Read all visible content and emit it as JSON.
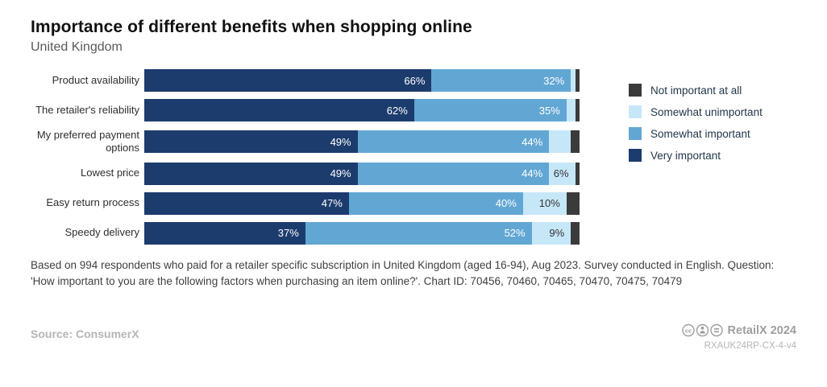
{
  "header": {
    "title": "Importance of different benefits when shopping online",
    "subtitle": "United Kingdom"
  },
  "chart_data": {
    "type": "bar",
    "stacked": true,
    "orientation": "horizontal",
    "title": "Importance of different benefits when shopping online",
    "subtitle": "United Kingdom",
    "xlim": [
      0,
      100
    ],
    "grid": false,
    "legend_position": "right",
    "categories": [
      "Product availability",
      "The retailer's reliability",
      "My preferred payment options",
      "Lowest price",
      "Easy return process",
      "Speedy delivery"
    ],
    "series": [
      {
        "key": "very-important",
        "name": "Very important",
        "color": "#1d3c6e",
        "label_color": "#ffffff",
        "values": [
          66,
          62,
          49,
          49,
          47,
          37
        ],
        "labels": [
          "66%",
          "62%",
          "49%",
          "49%",
          "47%",
          "37%"
        ]
      },
      {
        "key": "somewhat-important",
        "name": "Somewhat important",
        "color": "#62a7d4",
        "label_color": "#ffffff",
        "values": [
          32,
          35,
          44,
          44,
          40,
          52
        ],
        "labels": [
          "32%",
          "35%",
          "44%",
          "44%",
          "40%",
          "52%"
        ]
      },
      {
        "key": "somewhat-unimportant",
        "name": "Somewhat unimportant",
        "color": "#c6e7f8",
        "label_color": "#333333",
        "values": [
          1,
          2,
          5,
          6,
          10,
          9
        ],
        "labels": [
          "",
          "",
          "",
          "6%",
          "10%",
          "9%"
        ]
      },
      {
        "key": "not-important-at-all",
        "name": "Not important at all",
        "color": "#3b3b3b",
        "label_color": "#ffffff",
        "values": [
          1,
          1,
          2,
          1,
          3,
          2
        ],
        "labels": [
          "",
          "",
          "",
          "",
          "",
          ""
        ]
      }
    ]
  },
  "legend": {
    "items": [
      {
        "label": "Not important at all",
        "color": "#3b3b3b"
      },
      {
        "label": "Somewhat unimportant",
        "color": "#c6e7f8"
      },
      {
        "label": "Somewhat important",
        "color": "#62a7d4"
      },
      {
        "label": "Very important",
        "color": "#1d3c6e"
      }
    ]
  },
  "footer": {
    "note": "Based on 994 respondents who paid for a retailer specific subscription in United Kingdom (aged 16-94), Aug 2023. Survey conducted in English. Question: 'How important to you are the following factors when purchasing an item online?'. Chart ID: 70456, 70460, 70465, 70470, 70475, 70479",
    "source": "Source: ConsumerX",
    "brand": "RetailX 2024",
    "chart_ref": "RXAUK24RP-CX-4-v4",
    "license_icons": [
      "cc",
      "by",
      "nd"
    ]
  }
}
